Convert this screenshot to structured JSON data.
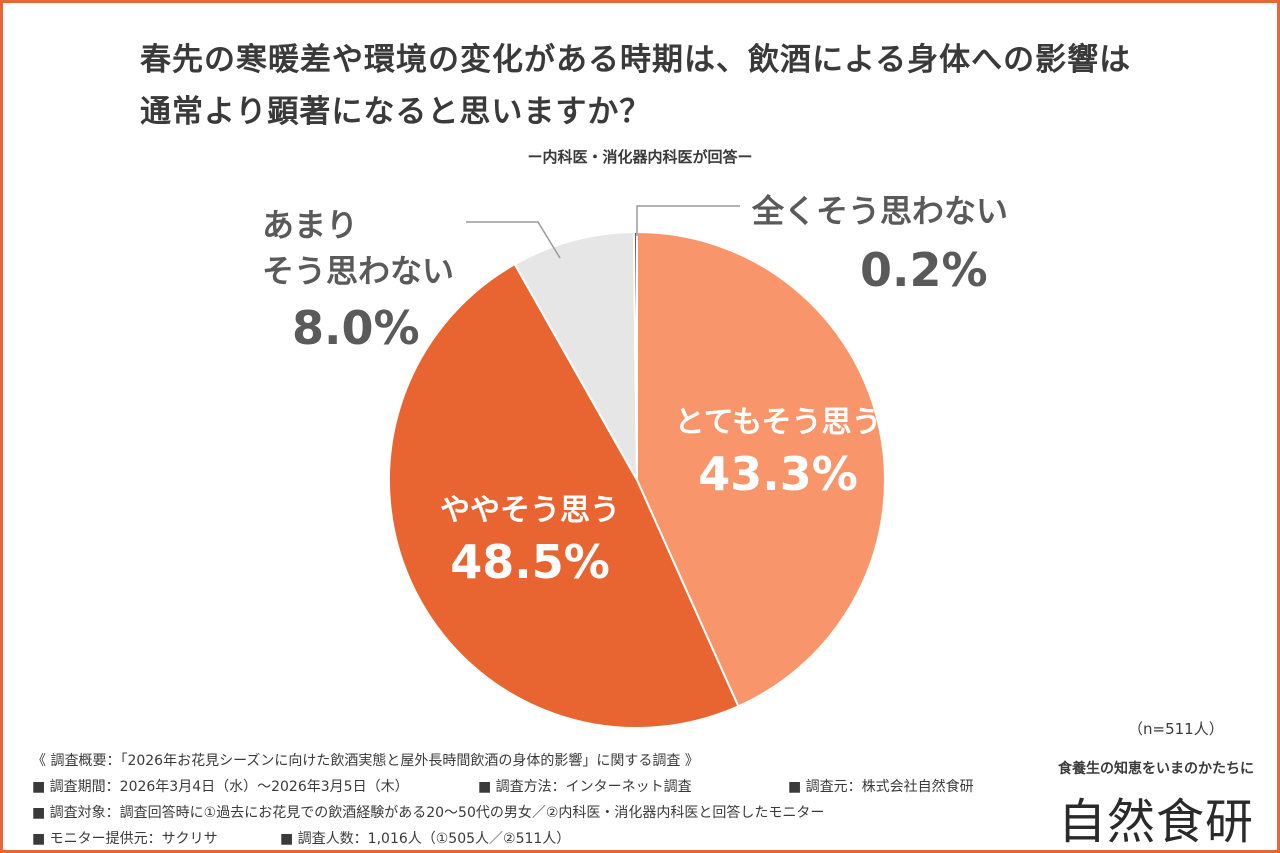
{
  "title_line1": "春先の寒暖差や環境の変化がある時期は、飲酒による身体への影響は",
  "title_line2": "通常より顕著になると思いますか？",
  "subtitle": "ー内科医・消化器内科医が回答ー",
  "chart_data": {
    "type": "pie",
    "title": "春先の寒暖差や環境の変化がある時期は、飲酒による身体への影響は通常より顕著になると思いますか？",
    "unit": "%",
    "slices": [
      {
        "label_lines": [
          "とてもそう思う"
        ],
        "value": 43.3,
        "value_text": "43.3%",
        "color": "#f8956b"
      },
      {
        "label_lines": [
          "ややそう思う"
        ],
        "value": 48.5,
        "value_text": "48.5%",
        "color": "#e86431"
      },
      {
        "label_lines": [
          "あまり",
          "そう思わない"
        ],
        "value": 8.0,
        "value_text": "8.0%",
        "color": "#e6e6e6"
      },
      {
        "label_lines": [
          "全くそう思わない"
        ],
        "value": 0.2,
        "value_text": "0.2%",
        "color": "#5f5f5f"
      }
    ]
  },
  "sample": "（n=511人）",
  "notes": {
    "overview": "《 調査概要：「2026年お花見シーズンに向けた飲酒実態と屋外長時間飲酒の身体的影響」に関する調査 》",
    "period": "■ 調査期間：2026年3月4日（水）～2026年3月5日（木）",
    "method": "■ 調査方法：インターネット調査",
    "source": "■ 調査元：株式会社自然食研",
    "target": "■ 調査対象：調査回答時に①過去にお花見での飲酒経験がある20～50代の男女／②内科医・消化器内科医と回答したモニター",
    "provider": "■ モニター提供元：サクリサ",
    "count": "■ 調査人数：1,016人（①505人／②511人）"
  },
  "brand": {
    "tagline": "食養生の知恵をいまのかたちに",
    "logo": "自然食研"
  },
  "colors": {
    "frame": "#e8643a",
    "text": "#3a3a3a"
  }
}
